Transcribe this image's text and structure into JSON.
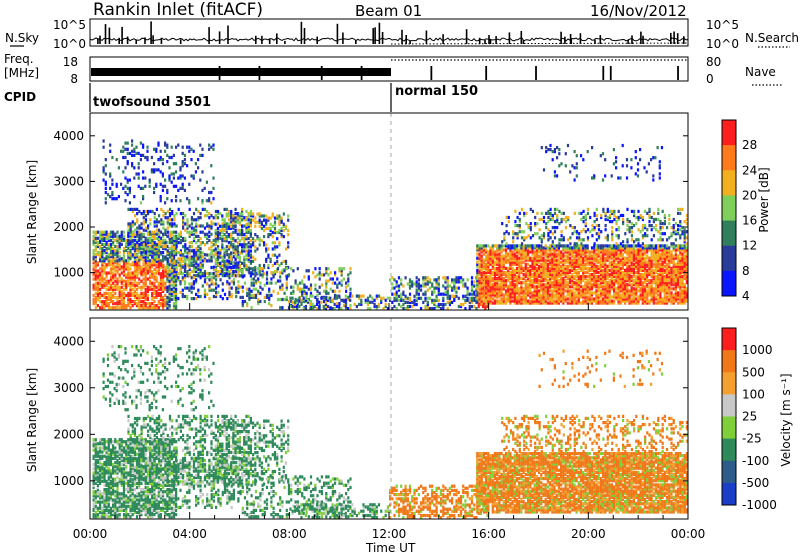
{
  "header": {
    "station": "Rankin Inlet (fitACF)",
    "beam": "Beam 01",
    "date": "16/Nov/2012"
  },
  "noise_panel": {
    "left_label": "N.Sky",
    "right_label": "N.Search",
    "left_ticks": [
      "10^5",
      "10^0"
    ],
    "right_ticks": [
      "10^5",
      "10^0"
    ]
  },
  "freq_panel": {
    "left_label_1": "Freq.",
    "left_label_2": "[MHz]",
    "right_label": "Nave",
    "left_ticks": [
      "18",
      "8"
    ],
    "right_ticks": [
      "80",
      "0"
    ]
  },
  "cpid": {
    "label": "CPID",
    "modes": [
      {
        "name": "twofsound 3501",
        "start_hour": 0,
        "end_hour": 12
      },
      {
        "name": "normal 150",
        "start_hour": 12,
        "end_hour": 24
      }
    ]
  },
  "chart_data": [
    {
      "type": "heatmap",
      "quantity": "Power",
      "ylabel": "Slant Range [km]",
      "ylim": [
        180,
        4500
      ],
      "yticks": [
        1000,
        2000,
        3000,
        4000
      ],
      "colorbar_label": "Power [dB]",
      "colorbar_ticks": [
        "4",
        "8",
        "12",
        "16",
        "20",
        "24",
        "28"
      ],
      "colorbar_range": [
        0,
        30
      ],
      "colors": [
        "#0a16ff",
        "#2a3c9a",
        "#2f7f5c",
        "#7fd05a",
        "#f2b020",
        "#ff7a1a",
        "#ff1e1e"
      ]
    },
    {
      "type": "heatmap",
      "quantity": "Velocity",
      "ylabel": "Slant Range [km]",
      "ylim": [
        180,
        4500
      ],
      "yticks": [
        1000,
        2000,
        3000,
        4000
      ],
      "colorbar_label": "Velocity [m s⁻¹]",
      "colorbar_ticks": [
        "1000",
        "500",
        "100",
        "25",
        "-25",
        "-100",
        "-500",
        "-1000"
      ],
      "colors": [
        "#1a3ec8",
        "#2d5c8a",
        "#2e8a5a",
        "#7fcf3a",
        "#c8c8c8",
        "#f4a030",
        "#f07818",
        "#ff1e1e"
      ]
    }
  ],
  "time_axis": {
    "label": "Time UT",
    "ticks": [
      "00:00",
      "04:00",
      "08:00",
      "12:00",
      "16:00",
      "20:00",
      "00:00"
    ]
  }
}
